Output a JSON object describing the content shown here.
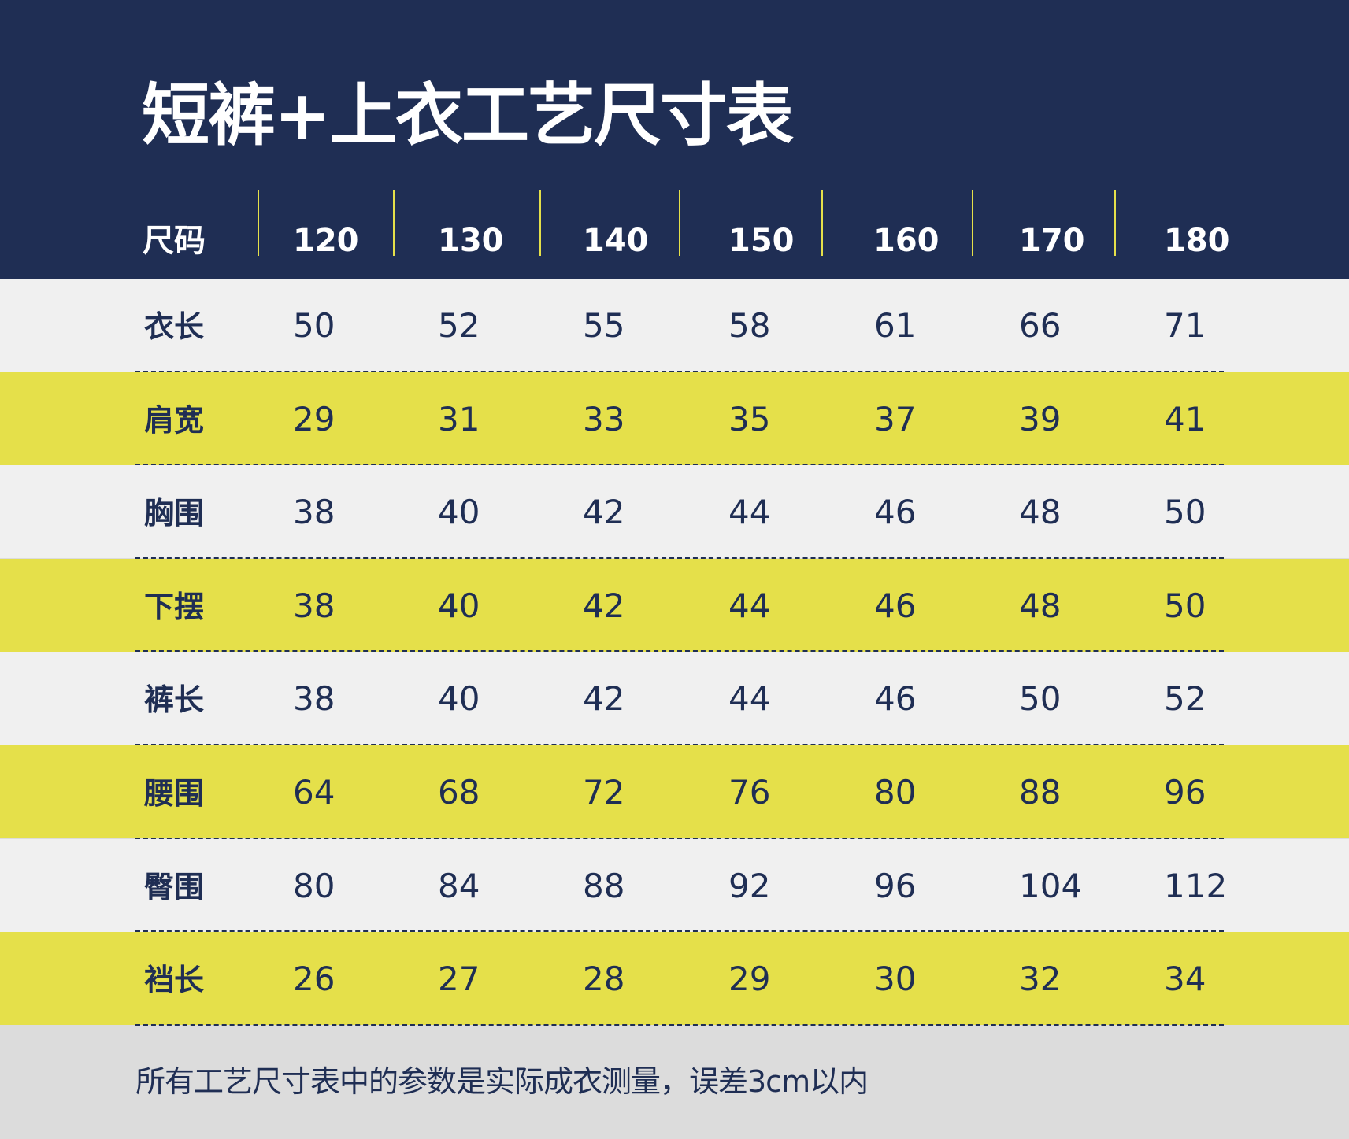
{
  "title": "短裤+上衣工艺尺寸表",
  "footer_note": "所有工艺尺寸表中的参数是实际成衣测量，误差3cm以内",
  "colors": {
    "navy": "#1f2e54",
    "yellow": "#e5e04a",
    "light_gray": "#f0f0f0",
    "footer_gray": "#dcdcdc"
  },
  "chart_data": {
    "type": "table",
    "header_label": "尺码",
    "columns": [
      "120",
      "130",
      "140",
      "150",
      "160",
      "170",
      "180"
    ],
    "rows": [
      {
        "label": "衣长",
        "values": [
          "50",
          "52",
          "55",
          "58",
          "61",
          "66",
          "71"
        ]
      },
      {
        "label": "肩宽",
        "values": [
          "29",
          "31",
          "33",
          "35",
          "37",
          "39",
          "41"
        ]
      },
      {
        "label": "胸围",
        "values": [
          "38",
          "40",
          "42",
          "44",
          "46",
          "48",
          "50"
        ]
      },
      {
        "label": "下摆",
        "values": [
          "38",
          "40",
          "42",
          "44",
          "46",
          "48",
          "50"
        ]
      },
      {
        "label": "裤长",
        "values": [
          "38",
          "40",
          "42",
          "44",
          "46",
          "50",
          "52"
        ]
      },
      {
        "label": "腰围",
        "values": [
          "64",
          "68",
          "72",
          "76",
          "80",
          "88",
          "96"
        ]
      },
      {
        "label": "臀围",
        "values": [
          "80",
          "84",
          "88",
          "92",
          "96",
          "104",
          "112"
        ]
      },
      {
        "label": "裆长",
        "values": [
          "26",
          "27",
          "28",
          "29",
          "30",
          "32",
          "34"
        ]
      }
    ]
  }
}
